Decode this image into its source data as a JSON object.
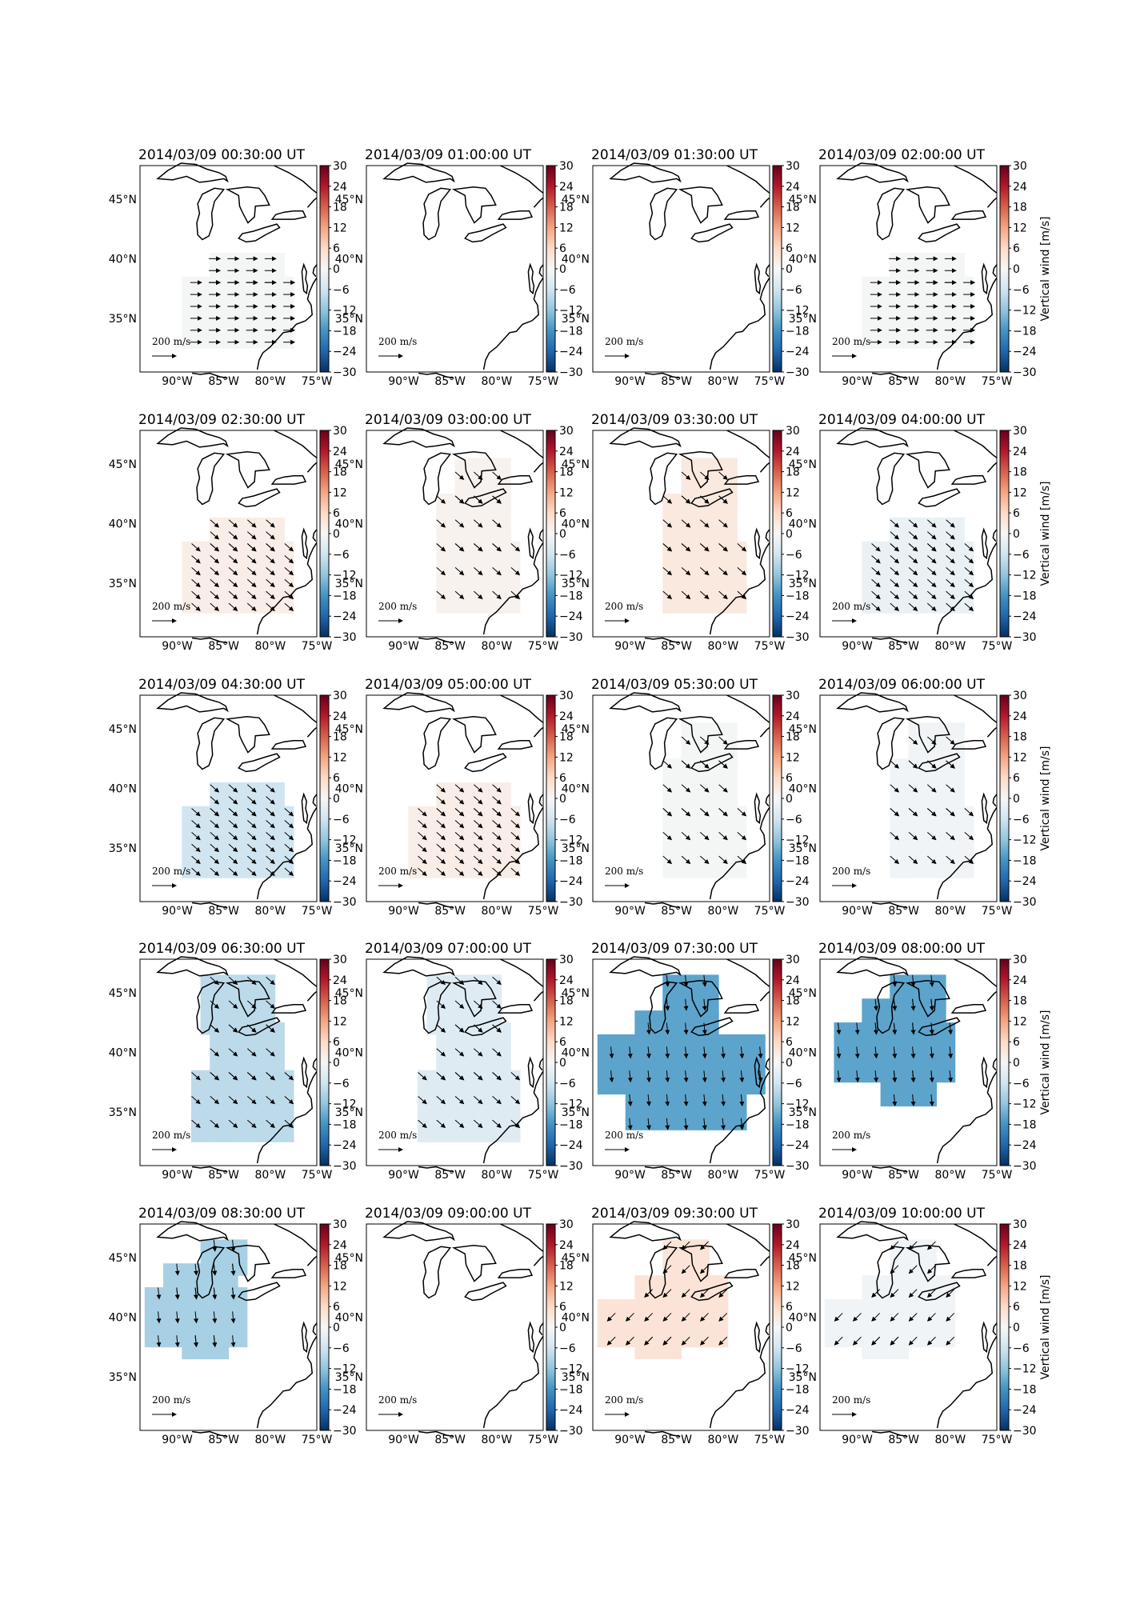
{
  "figure": {
    "colorbar_label": "Vertical wind [m/s]",
    "colorbar_ticks": [
      "30",
      "24",
      "18",
      "12",
      "6",
      "0",
      "−6",
      "−12",
      "−18",
      "−24",
      "−30"
    ],
    "colorbar_range": [
      -30,
      30
    ],
    "lon_ticks": [
      "90°W",
      "85°W",
      "80°W",
      "75°W"
    ],
    "lat_ticks": [
      "45°N",
      "40°N",
      "35°N"
    ],
    "scale_arrow": {
      "value": "200",
      "unit": "m/s"
    },
    "colormap": "RdBu_r"
  },
  "panels": [
    {
      "title": "2014/03/09 00:30:00 UT",
      "value": -0.5,
      "region": "south",
      "arrow": "east"
    },
    {
      "title": "2014/03/09 01:00:00 UT",
      "value": null,
      "region": "none",
      "arrow": "none"
    },
    {
      "title": "2014/03/09 01:30:00 UT",
      "value": null,
      "region": "none",
      "arrow": "none"
    },
    {
      "title": "2014/03/09 02:00:00 UT",
      "value": -0.5,
      "region": "south",
      "arrow": "east"
    },
    {
      "title": "2014/03/09 02:30:00 UT",
      "value": 2,
      "region": "south",
      "arrow": "southeast"
    },
    {
      "title": "2014/03/09 03:00:00 UT",
      "value": 1,
      "region": "central",
      "arrow": "southeast"
    },
    {
      "title": "2014/03/09 03:30:00 UT",
      "value": 3,
      "region": "central",
      "arrow": "southeast"
    },
    {
      "title": "2014/03/09 04:00:00 UT",
      "value": -2,
      "region": "south",
      "arrow": "southeast"
    },
    {
      "title": "2014/03/09 04:30:00 UT",
      "value": -6,
      "region": "south",
      "arrow": "southeast"
    },
    {
      "title": "2014/03/09 05:00:00 UT",
      "value": 2,
      "region": "south",
      "arrow": "southeast"
    },
    {
      "title": "2014/03/09 05:30:00 UT",
      "value": -0.5,
      "region": "central",
      "arrow": "southeast"
    },
    {
      "title": "2014/03/09 06:00:00 UT",
      "value": -1,
      "region": "central",
      "arrow": "southeast"
    },
    {
      "title": "2014/03/09 06:30:00 UT",
      "value": -8,
      "region": "full",
      "arrow": "southeast"
    },
    {
      "title": "2014/03/09 07:00:00 UT",
      "value": -4,
      "region": "full",
      "arrow": "southeast"
    },
    {
      "title": "2014/03/09 07:30:00 UT",
      "value": -16,
      "region": "wide",
      "arrow": "south"
    },
    {
      "title": "2014/03/09 08:00:00 UT",
      "value": -16,
      "region": "north",
      "arrow": "south"
    },
    {
      "title": "2014/03/09 08:30:00 UT",
      "value": -10,
      "region": "northwest",
      "arrow": "south"
    },
    {
      "title": "2014/03/09 09:00:00 UT",
      "value": null,
      "region": "none",
      "arrow": "none"
    },
    {
      "title": "2014/03/09 09:30:00 UT",
      "value": 4,
      "region": "northwest2",
      "arrow": "southwest"
    },
    {
      "title": "2014/03/09 10:00:00 UT",
      "value": -1,
      "region": "northwest2",
      "arrow": "southwest"
    }
  ]
}
